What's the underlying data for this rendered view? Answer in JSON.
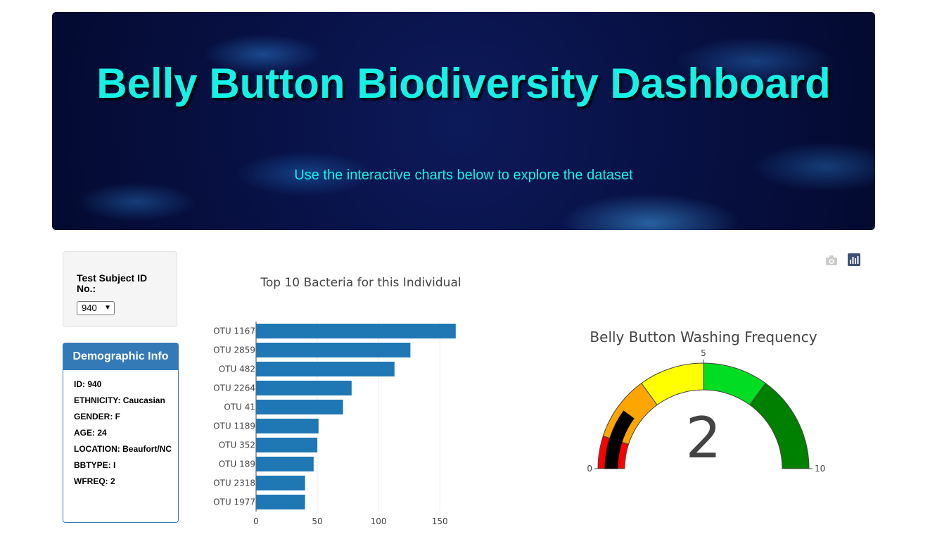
{
  "header": {
    "title": "Belly Button Biodiversity Dashboard",
    "subtitle": "Use the interactive charts below to explore the dataset"
  },
  "selector": {
    "label": "Test Subject ID No.:",
    "selected": "940"
  },
  "demographics": {
    "heading": "Demographic Info",
    "rows": [
      "ID: 940",
      "ETHNICITY: Caucasian",
      "GENDER: F",
      "AGE: 24",
      "LOCATION: Beaufort/NC",
      "BBTYPE: I",
      "WFREQ: 2"
    ]
  },
  "modebar": {
    "icons": [
      "camera-icon",
      "plotly-logo-icon"
    ]
  },
  "chart_data": [
    {
      "type": "bar",
      "orientation": "horizontal",
      "title": "Top 10 Bacteria for this Individual",
      "categories": [
        "OTU 1167",
        "OTU 2859",
        "OTU 482",
        "OTU 2264",
        "OTU 41",
        "OTU 1189",
        "OTU 352",
        "OTU 189",
        "OTU 2318",
        "OTU 1977"
      ],
      "values": [
        163,
        126,
        113,
        78,
        71,
        51,
        50,
        47,
        40,
        40
      ],
      "xlim": [
        0,
        170
      ],
      "xticks": [
        0,
        50,
        100,
        150
      ],
      "grid": true,
      "color": "#1f77b4"
    },
    {
      "type": "gauge",
      "title": "Belly Button Washing Frequency",
      "value": 2,
      "range": [
        0,
        10
      ],
      "ticks": [
        0,
        5,
        10
      ],
      "steps": [
        {
          "range": [
            0,
            1
          ],
          "color": "#ff0000"
        },
        {
          "range": [
            1,
            3
          ],
          "color": "#ffa500"
        },
        {
          "range": [
            3,
            5
          ],
          "color": "#ffff00"
        },
        {
          "range": [
            5,
            7
          ],
          "color": "#00dd22"
        },
        {
          "range": [
            7,
            10
          ],
          "color": "#008000"
        }
      ],
      "bar_color": "#000000"
    }
  ]
}
